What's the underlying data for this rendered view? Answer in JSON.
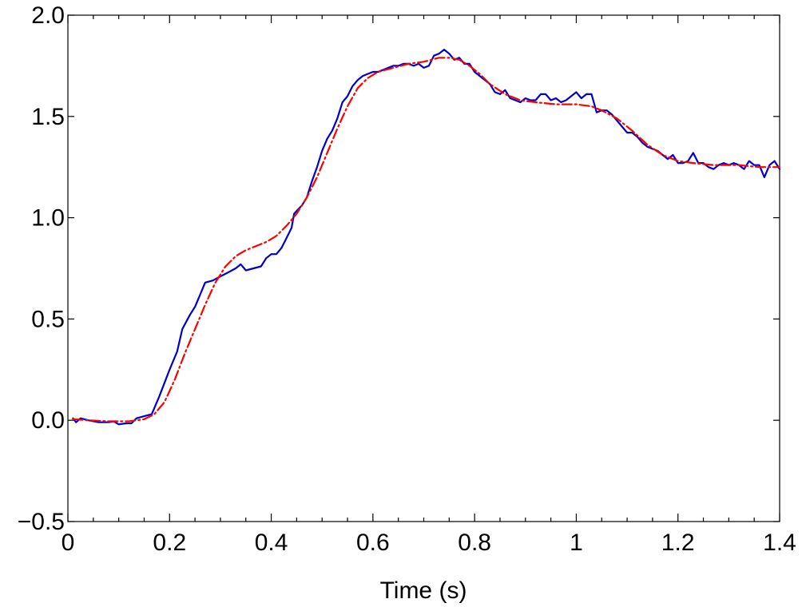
{
  "chart_data": {
    "type": "line",
    "title": "",
    "xlabel": "Time (s)",
    "ylabel": "",
    "xlim": [
      0,
      1.4
    ],
    "ylim": [
      -0.5,
      2.0
    ],
    "grid": false,
    "x_ticks": [
      {
        "value": 0,
        "label": "0"
      },
      {
        "value": 0.2,
        "label": "0.2"
      },
      {
        "value": 0.4,
        "label": "0.4"
      },
      {
        "value": 0.6,
        "label": "0.6"
      },
      {
        "value": 0.8,
        "label": "0.8"
      },
      {
        "value": 1.0,
        "label": "1"
      },
      {
        "value": 1.2,
        "label": "1.2"
      },
      {
        "value": 1.4,
        "label": "1.4"
      }
    ],
    "y_ticks": [
      {
        "value": -0.5,
        "label": "−0.5"
      },
      {
        "value": 0.0,
        "label": "0.0"
      },
      {
        "value": 0.5,
        "label": "0.5"
      },
      {
        "value": 1.0,
        "label": "1.0"
      },
      {
        "value": 1.5,
        "label": "1.5"
      },
      {
        "value": 2.0,
        "label": "2.0"
      }
    ],
    "series": [
      {
        "color": "#0000cc",
        "style": "solid",
        "points": [
          [
            0.01,
            0.01
          ],
          [
            0.016,
            -0.01
          ],
          [
            0.025,
            0.01
          ],
          [
            0.04,
            0.0
          ],
          [
            0.06,
            -0.01
          ],
          [
            0.08,
            -0.01
          ],
          [
            0.09,
            -0.005
          ],
          [
            0.1,
            -0.02
          ],
          [
            0.115,
            -0.015
          ],
          [
            0.125,
            -0.015
          ],
          [
            0.135,
            0.01
          ],
          [
            0.15,
            0.02
          ],
          [
            0.165,
            0.03
          ],
          [
            0.18,
            0.12
          ],
          [
            0.2,
            0.25
          ],
          [
            0.215,
            0.34
          ],
          [
            0.225,
            0.45
          ],
          [
            0.24,
            0.52
          ],
          [
            0.25,
            0.56
          ],
          [
            0.26,
            0.62
          ],
          [
            0.27,
            0.68
          ],
          [
            0.285,
            0.69
          ],
          [
            0.3,
            0.71
          ],
          [
            0.315,
            0.73
          ],
          [
            0.33,
            0.75
          ],
          [
            0.34,
            0.77
          ],
          [
            0.35,
            0.74
          ],
          [
            0.365,
            0.75
          ],
          [
            0.38,
            0.76
          ],
          [
            0.39,
            0.8
          ],
          [
            0.4,
            0.82
          ],
          [
            0.41,
            0.82
          ],
          [
            0.42,
            0.85
          ],
          [
            0.43,
            0.9
          ],
          [
            0.44,
            0.95
          ],
          [
            0.445,
            1.02
          ],
          [
            0.46,
            1.06
          ],
          [
            0.47,
            1.1
          ],
          [
            0.48,
            1.18
          ],
          [
            0.49,
            1.25
          ],
          [
            0.5,
            1.33
          ],
          [
            0.51,
            1.39
          ],
          [
            0.52,
            1.43
          ],
          [
            0.53,
            1.49
          ],
          [
            0.54,
            1.57
          ],
          [
            0.55,
            1.6
          ],
          [
            0.56,
            1.65
          ],
          [
            0.57,
            1.68
          ],
          [
            0.58,
            1.7
          ],
          [
            0.59,
            1.71
          ],
          [
            0.6,
            1.72
          ],
          [
            0.61,
            1.72
          ],
          [
            0.62,
            1.73
          ],
          [
            0.63,
            1.74
          ],
          [
            0.64,
            1.75
          ],
          [
            0.65,
            1.75
          ],
          [
            0.66,
            1.76
          ],
          [
            0.67,
            1.76
          ],
          [
            0.68,
            1.75
          ],
          [
            0.69,
            1.76
          ],
          [
            0.7,
            1.74
          ],
          [
            0.71,
            1.75
          ],
          [
            0.72,
            1.8
          ],
          [
            0.73,
            1.81
          ],
          [
            0.74,
            1.83
          ],
          [
            0.75,
            1.81
          ],
          [
            0.76,
            1.78
          ],
          [
            0.77,
            1.79
          ],
          [
            0.78,
            1.76
          ],
          [
            0.79,
            1.76
          ],
          [
            0.8,
            1.72
          ],
          [
            0.81,
            1.7
          ],
          [
            0.82,
            1.68
          ],
          [
            0.83,
            1.66
          ],
          [
            0.84,
            1.62
          ],
          [
            0.85,
            1.61
          ],
          [
            0.86,
            1.63
          ],
          [
            0.87,
            1.59
          ],
          [
            0.88,
            1.58
          ],
          [
            0.89,
            1.57
          ],
          [
            0.9,
            1.59
          ],
          [
            0.91,
            1.58
          ],
          [
            0.92,
            1.58
          ],
          [
            0.93,
            1.61
          ],
          [
            0.94,
            1.61
          ],
          [
            0.95,
            1.58
          ],
          [
            0.96,
            1.59
          ],
          [
            0.97,
            1.57
          ],
          [
            0.98,
            1.58
          ],
          [
            0.99,
            1.6
          ],
          [
            1.0,
            1.62
          ],
          [
            1.01,
            1.59
          ],
          [
            1.02,
            1.61
          ],
          [
            1.03,
            1.61
          ],
          [
            1.04,
            1.52
          ],
          [
            1.05,
            1.53
          ],
          [
            1.06,
            1.53
          ],
          [
            1.07,
            1.51
          ],
          [
            1.08,
            1.48
          ],
          [
            1.09,
            1.45
          ],
          [
            1.1,
            1.42
          ],
          [
            1.11,
            1.42
          ],
          [
            1.12,
            1.4
          ],
          [
            1.13,
            1.37
          ],
          [
            1.14,
            1.35
          ],
          [
            1.15,
            1.34
          ],
          [
            1.16,
            1.33
          ],
          [
            1.17,
            1.31
          ],
          [
            1.18,
            1.29
          ],
          [
            1.19,
            1.31
          ],
          [
            1.2,
            1.27
          ],
          [
            1.21,
            1.27
          ],
          [
            1.22,
            1.28
          ],
          [
            1.23,
            1.32
          ],
          [
            1.24,
            1.27
          ],
          [
            1.25,
            1.27
          ],
          [
            1.26,
            1.25
          ],
          [
            1.27,
            1.24
          ],
          [
            1.28,
            1.26
          ],
          [
            1.29,
            1.27
          ],
          [
            1.3,
            1.26
          ],
          [
            1.31,
            1.27
          ],
          [
            1.32,
            1.26
          ],
          [
            1.33,
            1.24
          ],
          [
            1.34,
            1.28
          ],
          [
            1.35,
            1.26
          ],
          [
            1.36,
            1.26
          ],
          [
            1.37,
            1.2
          ],
          [
            1.38,
            1.26
          ],
          [
            1.39,
            1.28
          ],
          [
            1.4,
            1.24
          ]
        ]
      },
      {
        "color": "#ff0000",
        "style": "dash-dot",
        "points": [
          [
            0.01,
            0.005
          ],
          [
            0.04,
            0.0
          ],
          [
            0.08,
            -0.005
          ],
          [
            0.12,
            -0.005
          ],
          [
            0.15,
            0.005
          ],
          [
            0.17,
            0.03
          ],
          [
            0.19,
            0.09
          ],
          [
            0.21,
            0.2
          ],
          [
            0.23,
            0.33
          ],
          [
            0.25,
            0.45
          ],
          [
            0.27,
            0.57
          ],
          [
            0.29,
            0.68
          ],
          [
            0.31,
            0.76
          ],
          [
            0.33,
            0.81
          ],
          [
            0.35,
            0.84
          ],
          [
            0.37,
            0.86
          ],
          [
            0.39,
            0.88
          ],
          [
            0.41,
            0.91
          ],
          [
            0.43,
            0.96
          ],
          [
            0.45,
            1.02
          ],
          [
            0.47,
            1.1
          ],
          [
            0.49,
            1.2
          ],
          [
            0.51,
            1.32
          ],
          [
            0.53,
            1.44
          ],
          [
            0.55,
            1.55
          ],
          [
            0.57,
            1.64
          ],
          [
            0.59,
            1.69
          ],
          [
            0.61,
            1.72
          ],
          [
            0.64,
            1.74
          ],
          [
            0.67,
            1.76
          ],
          [
            0.7,
            1.77
          ],
          [
            0.73,
            1.79
          ],
          [
            0.75,
            1.79
          ],
          [
            0.77,
            1.78
          ],
          [
            0.79,
            1.75
          ],
          [
            0.81,
            1.71
          ],
          [
            0.83,
            1.66
          ],
          [
            0.86,
            1.61
          ],
          [
            0.89,
            1.58
          ],
          [
            0.92,
            1.57
          ],
          [
            0.96,
            1.56
          ],
          [
            1.0,
            1.56
          ],
          [
            1.03,
            1.55
          ],
          [
            1.05,
            1.53
          ],
          [
            1.08,
            1.49
          ],
          [
            1.11,
            1.43
          ],
          [
            1.14,
            1.36
          ],
          [
            1.17,
            1.31
          ],
          [
            1.2,
            1.28
          ],
          [
            1.23,
            1.27
          ],
          [
            1.27,
            1.26
          ],
          [
            1.32,
            1.26
          ],
          [
            1.36,
            1.25
          ],
          [
            1.4,
            1.25
          ]
        ]
      }
    ]
  }
}
